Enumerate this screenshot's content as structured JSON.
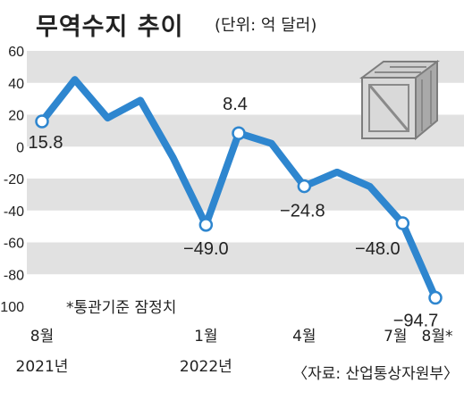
{
  "title": "무역수지 추이",
  "unit_note": "(단위: 억 달러)",
  "footnote": "*통관기준 잠정치",
  "source": "〈자료: 산업통상자원부〉",
  "colors": {
    "line": "#2e86cf",
    "band": "#e1e1e1",
    "marker_fill": "#ffffff"
  },
  "chart_data": {
    "type": "line",
    "title": "무역수지 추이",
    "ylabel": "억 달러",
    "ylim": [
      -100,
      60
    ],
    "yticks": [
      60,
      40,
      20,
      0,
      -20,
      -40,
      -60,
      -80,
      -100
    ],
    "x": [
      "2021-08",
      "2021-09",
      "2021-10",
      "2021-11",
      "2021-12",
      "2022-01",
      "2022-02",
      "2022-03",
      "2022-04",
      "2022-05",
      "2022-06",
      "2022-07",
      "2022-08"
    ],
    "values": [
      15.8,
      42,
      18,
      29,
      -7,
      -49.0,
      8.4,
      2,
      -24.8,
      -16,
      -25,
      -48.0,
      -94.7
    ],
    "markers": [
      0,
      5,
      6,
      8,
      11,
      12
    ],
    "data_labels": [
      {
        "index": 0,
        "text": "15.8"
      },
      {
        "index": 5,
        "text": "−49.0"
      },
      {
        "index": 6,
        "text": "8.4"
      },
      {
        "index": 8,
        "text": "−24.8"
      },
      {
        "index": 11,
        "text": "−48.0"
      },
      {
        "index": 12,
        "text": "−94.7"
      }
    ],
    "tick_labels": [
      {
        "index": 0,
        "text": "8월",
        "year": "2021년"
      },
      {
        "index": 5,
        "text": "1월",
        "year": "2022년"
      },
      {
        "index": 8,
        "text": "4월"
      },
      {
        "index": 11,
        "text": "7월"
      },
      {
        "index": 12,
        "text": "8월*"
      }
    ],
    "grid": "alternating horizontal bands"
  }
}
